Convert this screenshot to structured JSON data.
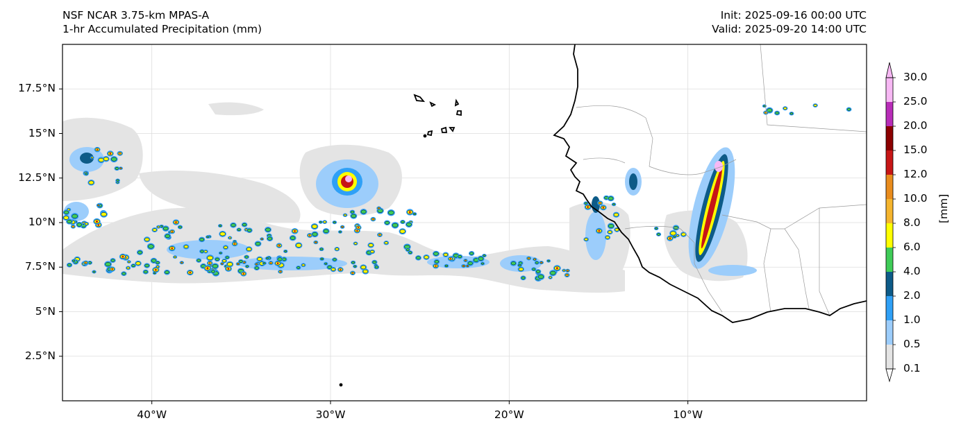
{
  "title_left": {
    "line1": "NSF NCAR 3.75-km MPAS-A",
    "line2": "1-hr Accumulated Precipitation (mm)"
  },
  "title_right": {
    "line1": "Init: 2025-09-16 00:00 UTC",
    "line2": "Valid: 2025-09-20 14:00 UTC"
  },
  "map": {
    "lon_range": [
      -45,
      0
    ],
    "lat_range": [
      0,
      20
    ],
    "lat_ticks": [
      {
        "value": 2.5,
        "label": "2.5°N"
      },
      {
        "value": 5,
        "label": "5°N"
      },
      {
        "value": 7.5,
        "label": "7.5°N"
      },
      {
        "value": 10,
        "label": "10°N"
      },
      {
        "value": 12.5,
        "label": "12.5°N"
      },
      {
        "value": 15,
        "label": "15°N"
      },
      {
        "value": 17.5,
        "label": "17.5°N"
      }
    ],
    "lon_ticks": [
      {
        "value": -40,
        "label": "40°W"
      },
      {
        "value": -30,
        "label": "30°W"
      },
      {
        "value": -20,
        "label": "20°W"
      },
      {
        "value": -10,
        "label": "10°W"
      }
    ],
    "gridlines": true,
    "colors": {
      "coastline": "#000000",
      "borders": "#9a9a9a",
      "gridline": "#dddddd"
    }
  },
  "colorbar": {
    "levels": [
      "0.1",
      "0.5",
      "1.0",
      "2.0",
      "4.0",
      "6.0",
      "8.0",
      "10.0",
      "12.0",
      "15.0",
      "20.0",
      "25.0",
      "30.0"
    ],
    "colors": [
      "#e4e4e4",
      "#9ccdfb",
      "#2fa0f6",
      "#0d5b88",
      "#3fcc58",
      "#ffff00",
      "#f5b52e",
      "#e98c1d",
      "#c71616",
      "#8c0000",
      "#b82db8",
      "#f7b8f4"
    ],
    "unit": "[mm]",
    "extend": "both"
  }
}
